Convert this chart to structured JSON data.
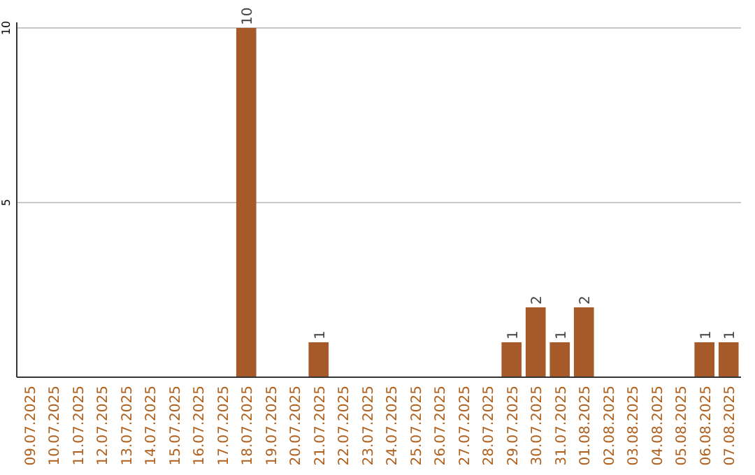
{
  "chart_data": {
    "type": "bar",
    "categories": [
      "09.07.2025",
      "10.07.2025",
      "11.07.2025",
      "12.07.2025",
      "13.07.2025",
      "14.07.2025",
      "15.07.2025",
      "16.07.2025",
      "17.07.2025",
      "18.07.2025",
      "19.07.2025",
      "20.07.2025",
      "21.07.2025",
      "22.07.2025",
      "23.07.2025",
      "24.07.2025",
      "25.07.2025",
      "26.07.2025",
      "27.07.2025",
      "28.07.2025",
      "29.07.2025",
      "30.07.2025",
      "31.07.2025",
      "01.08.2025",
      "02.08.2025",
      "03.08.2025",
      "04.08.2025",
      "05.08.2025",
      "06.08.2025",
      "07.08.2025"
    ],
    "values": [
      0,
      0,
      0,
      0,
      0,
      0,
      0,
      0,
      0,
      10,
      0,
      0,
      1,
      0,
      0,
      0,
      0,
      0,
      0,
      0,
      1,
      2,
      1,
      2,
      0,
      0,
      0,
      0,
      1,
      1
    ],
    "value_labels": [
      null,
      null,
      null,
      null,
      null,
      null,
      null,
      null,
      null,
      "10",
      null,
      null,
      "1",
      null,
      null,
      null,
      null,
      null,
      null,
      null,
      "1",
      "2",
      "1",
      "2",
      null,
      null,
      null,
      null,
      "1",
      "1"
    ],
    "color": "#a65a2a",
    "ylim": [
      0,
      10
    ],
    "yticks": [
      5,
      10
    ],
    "grid": "y"
  }
}
